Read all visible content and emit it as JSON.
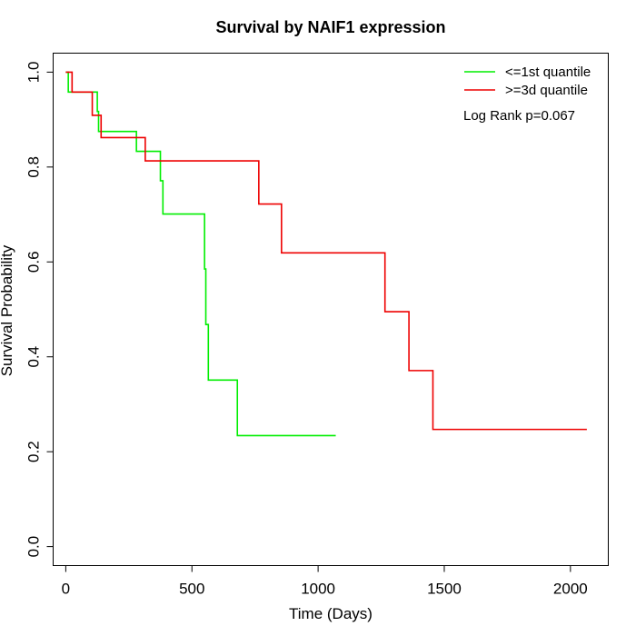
{
  "chart_data": {
    "type": "line",
    "step": true,
    "title": "Survival by NAIF1 expression",
    "xlabel": "Time (Days)",
    "ylabel": "Survival Probability",
    "xlim": [
      -50,
      2150
    ],
    "ylim": [
      -0.04,
      1.04
    ],
    "xticks": [
      0,
      500,
      1000,
      1500,
      2000
    ],
    "xtick_labels": [
      "0",
      "500",
      "1000",
      "1500",
      "2000"
    ],
    "yticks": [
      0.0,
      0.2,
      0.4,
      0.6,
      0.8,
      1.0
    ],
    "ytick_labels": [
      "0.0",
      "0.2",
      "0.4",
      "0.6",
      "0.8",
      "1.0"
    ],
    "grid": false,
    "legend_position": "top-right",
    "annotation": "Log Rank p=0.067",
    "series": [
      {
        "name": "<=1st quantile",
        "color": "#00ee00",
        "x": [
          0,
          10,
          10,
          125,
          125,
          130,
          130,
          135,
          135,
          280,
          280,
          375,
          375,
          385,
          385,
          550,
          550,
          555,
          555,
          565,
          565,
          680,
          680,
          1070
        ],
        "y": [
          1.0,
          1.0,
          0.958,
          0.958,
          0.917,
          0.917,
          0.875,
          0.875,
          0.875,
          0.875,
          0.833,
          0.833,
          0.771,
          0.771,
          0.701,
          0.701,
          0.585,
          0.585,
          0.468,
          0.468,
          0.351,
          0.351,
          0.234,
          0.234
        ]
      },
      {
        "name": ">=3d quantile",
        "color": "#ee0000",
        "x": [
          0,
          25,
          25,
          105,
          105,
          140,
          140,
          315,
          315,
          765,
          765,
          855,
          855,
          1265,
          1265,
          1360,
          1360,
          1455,
          1455,
          2065
        ],
        "y": [
          1.0,
          1.0,
          0.958,
          0.958,
          0.909,
          0.909,
          0.862,
          0.862,
          0.813,
          0.813,
          0.722,
          0.722,
          0.619,
          0.619,
          0.495,
          0.495,
          0.371,
          0.371,
          0.247,
          0.247
        ]
      }
    ]
  }
}
